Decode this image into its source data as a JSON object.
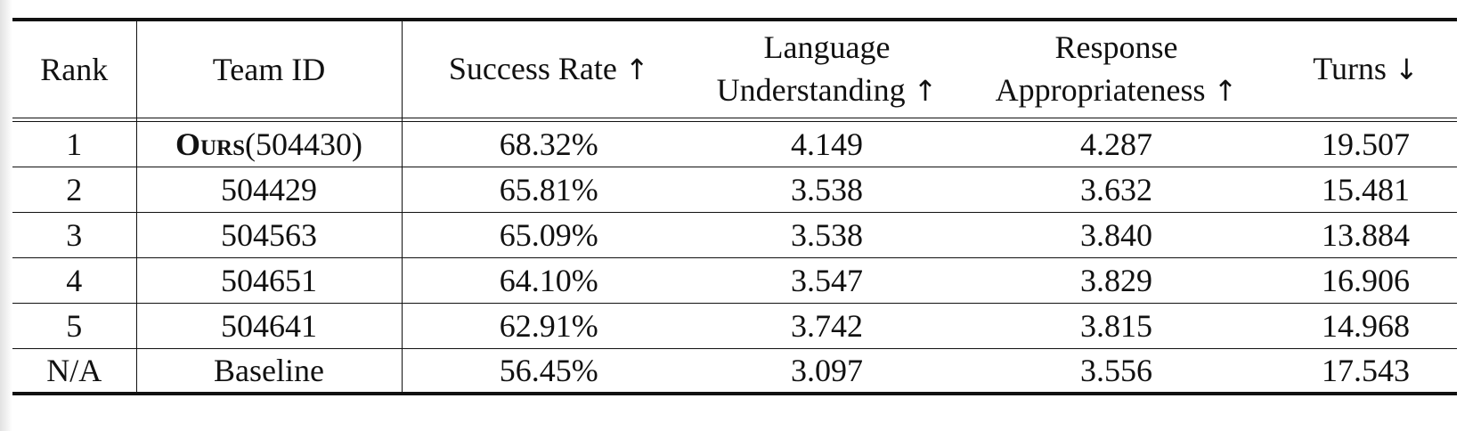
{
  "table": {
    "headers": {
      "rank": "Rank",
      "team_id": "Team ID",
      "success_rate": "Success Rate",
      "success_rate_arrow": "↑",
      "language_understanding_line1": "Language",
      "language_understanding_line2": "Understanding",
      "language_understanding_arrow": "↑",
      "response_appropriateness_line1": "Response",
      "response_appropriateness_line2": "Appropriateness",
      "response_appropriateness_arrow": "↑",
      "turns": "Turns",
      "turns_arrow": "↓"
    },
    "rows": [
      {
        "rank": "1",
        "team_name": "Ours",
        "team_id": "(504430)",
        "success_rate": "68.32%",
        "language_understanding": "4.149",
        "response_appropriateness": "4.287",
        "turns": "19.507"
      },
      {
        "rank": "2",
        "team_id": "504429",
        "success_rate": "65.81%",
        "language_understanding": "3.538",
        "response_appropriateness": "3.632",
        "turns": "15.481"
      },
      {
        "rank": "3",
        "team_id": "504563",
        "success_rate": "65.09%",
        "language_understanding": "3.538",
        "response_appropriateness": "3.840",
        "turns": "13.884"
      },
      {
        "rank": "4",
        "team_id": "504651",
        "success_rate": "64.10%",
        "language_understanding": "3.547",
        "response_appropriateness": "3.829",
        "turns": "16.906"
      },
      {
        "rank": "5",
        "team_id": "504641",
        "success_rate": "62.91%",
        "language_understanding": "3.742",
        "response_appropriateness": "3.815",
        "turns": "14.968"
      },
      {
        "rank": "N/A",
        "team_id": "Baseline",
        "success_rate": "56.45%",
        "language_understanding": "3.097",
        "response_appropriateness": "3.556",
        "turns": "17.543"
      }
    ]
  }
}
